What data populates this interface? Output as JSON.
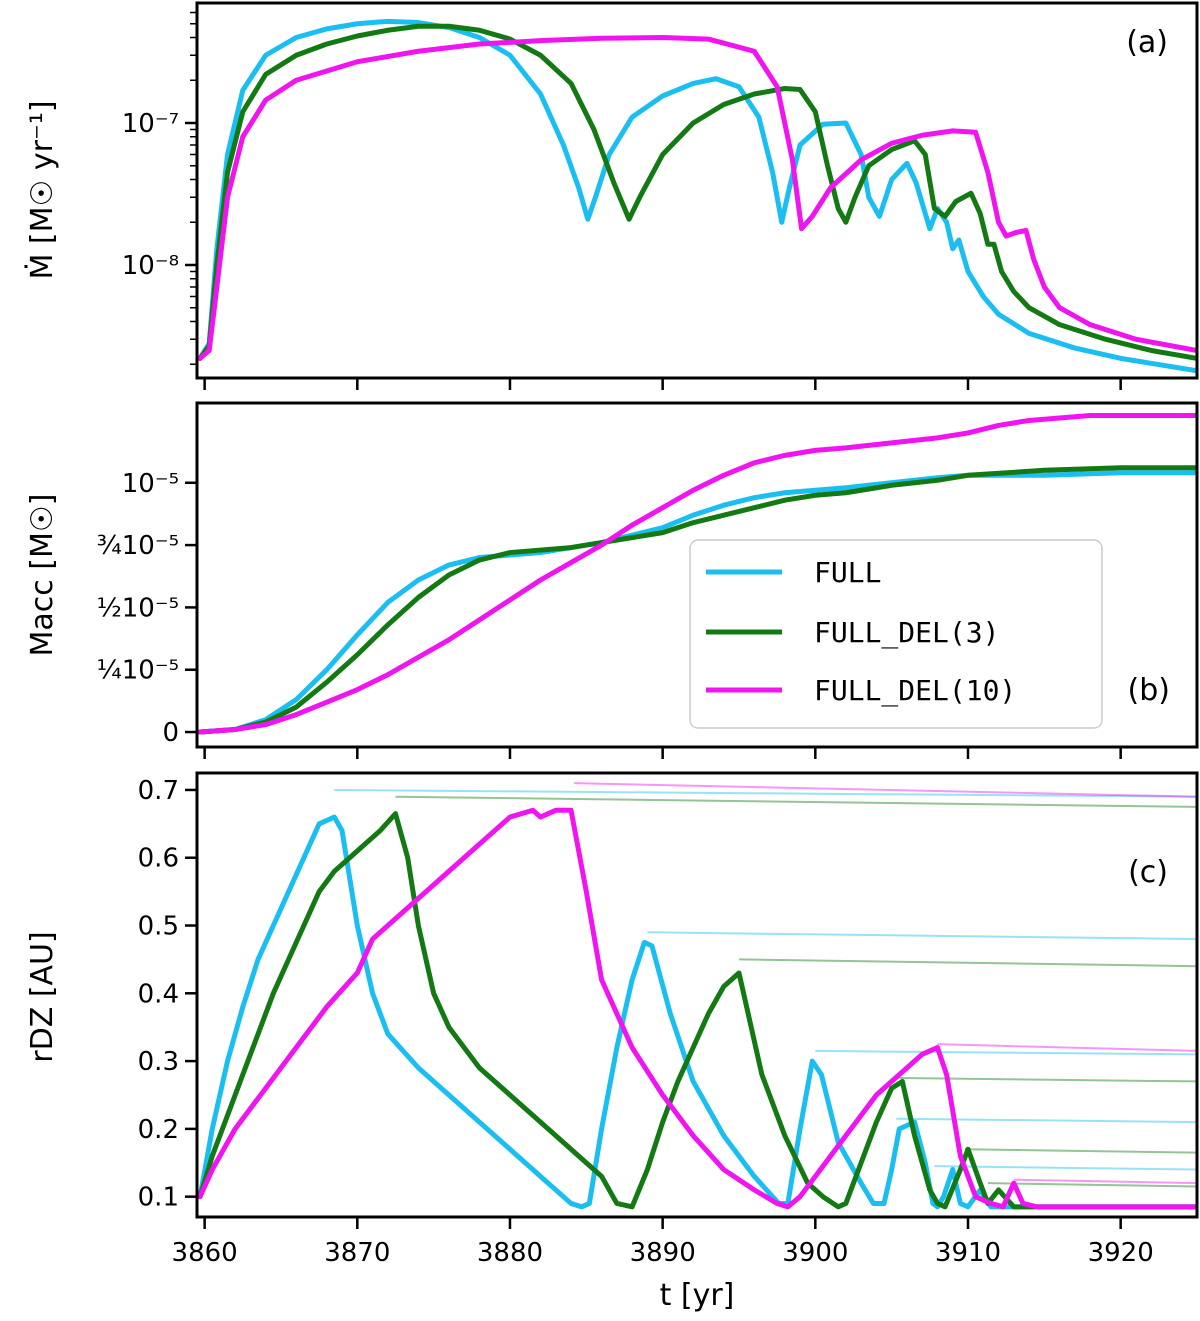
{
  "chart_data": [
    {
      "panel": "(a)",
      "type": "line",
      "yscale": "log",
      "ylabel": "Ṁ [M☉ yr⁻¹]",
      "xlim": [
        3859.5,
        3925
      ],
      "ylim": [
        1.6e-09,
        7e-07
      ],
      "yticks": [
        {
          "value": 1e-08,
          "label": "10⁻⁸"
        },
        {
          "value": 1e-07,
          "label": "10⁻⁷"
        }
      ],
      "series": [
        {
          "name": "FULL",
          "color": "#1ABEF0",
          "x": [
            3859.7,
            3860.3,
            3860.8,
            3861.5,
            3862.5,
            3864,
            3866,
            3868,
            3870,
            3872,
            3874,
            3876,
            3878,
            3880,
            3882,
            3883.5,
            3884.5,
            3885.1,
            3885.6,
            3886.5,
            3888,
            3890,
            3892,
            3893.5,
            3895,
            3896.3,
            3897.2,
            3897.8,
            3898.3,
            3899,
            3900.5,
            3902,
            3903,
            3903.5,
            3904.2,
            3905,
            3906,
            3906.6,
            3907.5,
            3908,
            3908.6,
            3909,
            3909.4,
            3910,
            3911,
            3912,
            3914,
            3917,
            3920,
            3925
          ],
          "y": [
            2.2e-09,
            2.8e-09,
            1.3e-08,
            6e-08,
            1.7e-07,
            3e-07,
            4e-07,
            4.6e-07,
            5e-07,
            5.2e-07,
            5.1e-07,
            4.7e-07,
            4e-07,
            3e-07,
            1.6e-07,
            7e-08,
            3.5e-08,
            2.1e-08,
            3e-08,
            6e-08,
            1.1e-07,
            1.55e-07,
            1.9e-07,
            2.05e-07,
            1.8e-07,
            1.1e-07,
            4.5e-08,
            2e-08,
            3.5e-08,
            7e-08,
            9.8e-08,
            1e-07,
            6e-08,
            3e-08,
            2.2e-08,
            4e-08,
            5.2e-08,
            3.8e-08,
            1.8e-08,
            2.5e-08,
            2e-08,
            1.3e-08,
            1.5e-08,
            9e-09,
            6e-09,
            4.5e-09,
            3.3e-09,
            2.6e-09,
            2.2e-09,
            1.8e-09
          ]
        },
        {
          "name": "FULL_DEL(3)",
          "color": "#137A13",
          "x": [
            3859.7,
            3860.3,
            3860.8,
            3861.5,
            3862.5,
            3864,
            3866,
            3868,
            3870,
            3872,
            3874,
            3876,
            3878,
            3880,
            3882,
            3884,
            3885.5,
            3886.8,
            3887.8,
            3888.5,
            3890,
            3892,
            3894,
            3896,
            3898,
            3899,
            3900,
            3900.8,
            3901.5,
            3902,
            3902.6,
            3903.5,
            3905,
            3906.5,
            3907.2,
            3907.8,
            3908.5,
            3909.2,
            3910.2,
            3910.8,
            3911.3,
            3911.7,
            3912.2,
            3913,
            3914,
            3916,
            3919,
            3922,
            3925
          ],
          "y": [
            2.2e-09,
            2.7e-09,
            1e-08,
            4.5e-08,
            1.2e-07,
            2.2e-07,
            3e-07,
            3.6e-07,
            4.1e-07,
            4.5e-07,
            4.8e-07,
            4.8e-07,
            4.5e-07,
            3.9e-07,
            3e-07,
            1.9e-07,
            9e-08,
            3.8e-08,
            2.1e-08,
            3e-08,
            6e-08,
            1e-07,
            1.35e-07,
            1.6e-07,
            1.75e-07,
            1.72e-07,
            1.2e-07,
            5e-08,
            2.5e-08,
            2e-08,
            3e-08,
            5e-08,
            6.5e-08,
            7.5e-08,
            6e-08,
            2.5e-08,
            2.2e-08,
            2.8e-08,
            3.2e-08,
            2.3e-08,
            1.4e-08,
            1.4e-08,
            9e-09,
            6.5e-09,
            5e-09,
            3.8e-09,
            3e-09,
            2.5e-09,
            2.2e-09
          ]
        },
        {
          "name": "FULL_DEL(10)",
          "color": "#F015F0",
          "x": [
            3859.7,
            3860.3,
            3860.8,
            3861.5,
            3862.5,
            3864,
            3866,
            3870,
            3874,
            3878,
            3882,
            3886,
            3890,
            3893,
            3896,
            3897.5,
            3898.5,
            3899.1,
            3899.8,
            3901,
            3903,
            3905,
            3907,
            3909,
            3910.5,
            3911.3,
            3912,
            3912.5,
            3913.2,
            3913.8,
            3914.3,
            3915,
            3916,
            3918,
            3921,
            3925
          ],
          "y": [
            2.2e-09,
            2.5e-09,
            7e-09,
            3e-08,
            8e-08,
            1.45e-07,
            2e-07,
            2.7e-07,
            3.2e-07,
            3.6e-07,
            3.8e-07,
            3.95e-07,
            4e-07,
            3.9e-07,
            3.2e-07,
            1.8e-07,
            5.5e-08,
            1.8e-08,
            2.2e-08,
            3.5e-08,
            5.5e-08,
            7.2e-08,
            8.2e-08,
            8.8e-08,
            8.6e-08,
            4.5e-08,
            2e-08,
            1.6e-08,
            1.7e-08,
            1.75e-08,
            1.1e-08,
            7e-09,
            5e-09,
            3.8e-09,
            3e-09,
            2.5e-09
          ]
        }
      ]
    },
    {
      "panel": "(b)",
      "type": "line",
      "ylabel": "Macc [M☉]",
      "xlim": [
        3859.5,
        3925
      ],
      "ylim": [
        -6e-07,
        1.32e-05
      ],
      "yticks": [
        {
          "value": 0,
          "label": "0"
        },
        {
          "value": 2.5e-06,
          "label": "¼10⁻⁵"
        },
        {
          "value": 5e-06,
          "label": "½10⁻⁵"
        },
        {
          "value": 7.5e-06,
          "label": "¾10⁻⁵"
        },
        {
          "value": 1e-05,
          "label": "10⁻⁵"
        }
      ],
      "series": [
        {
          "name": "FULL",
          "color": "#1ABEF0",
          "x": [
            3859.7,
            3862,
            3864,
            3866,
            3868,
            3870,
            3872,
            3874,
            3876,
            3878,
            3880,
            3882,
            3884,
            3886,
            3888,
            3890,
            3892,
            3894,
            3896,
            3898,
            3900,
            3902,
            3905,
            3908,
            3910,
            3915,
            3920,
            3925
          ],
          "y": [
            0,
            1e-07,
            5e-07,
            1.3e-06,
            2.5e-06,
            3.9e-06,
            5.2e-06,
            6.1e-06,
            6.7e-06,
            7e-06,
            7.1e-06,
            7.2e-06,
            7.4e-06,
            7.6e-06,
            7.9e-06,
            8.2e-06,
            8.7e-06,
            9.1e-06,
            9.4e-06,
            9.6e-06,
            9.7e-06,
            9.8e-06,
            1e-05,
            1.02e-05,
            1.03e-05,
            1.03e-05,
            1.04e-05,
            1.04e-05
          ]
        },
        {
          "name": "FULL_DEL(3)",
          "color": "#137A13",
          "x": [
            3859.7,
            3862,
            3864,
            3866,
            3868,
            3870,
            3872,
            3874,
            3876,
            3878,
            3880,
            3882,
            3884,
            3886,
            3888,
            3890,
            3892,
            3894,
            3896,
            3898,
            3900,
            3902,
            3905,
            3908,
            3910,
            3915,
            3920,
            3925
          ],
          "y": [
            0,
            1e-07,
            4e-07,
            1e-06,
            2e-06,
            3.1e-06,
            4.3e-06,
            5.4e-06,
            6.3e-06,
            6.9e-06,
            7.2e-06,
            7.3e-06,
            7.4e-06,
            7.6e-06,
            7.8e-06,
            8e-06,
            8.4e-06,
            8.7e-06,
            9e-06,
            9.3e-06,
            9.5e-06,
            9.6e-06,
            9.9e-06,
            1.01e-05,
            1.03e-05,
            1.05e-05,
            1.06e-05,
            1.06e-05
          ]
        },
        {
          "name": "FULL_DEL(10)",
          "color": "#F015F0",
          "x": [
            3859.7,
            3862,
            3864,
            3866,
            3868,
            3870,
            3872,
            3874,
            3876,
            3878,
            3880,
            3882,
            3884,
            3886,
            3888,
            3890,
            3892,
            3894,
            3896,
            3898,
            3900,
            3902,
            3905,
            3908,
            3910,
            3912,
            3914,
            3916,
            3918,
            3920,
            3925
          ],
          "y": [
            0,
            1e-07,
            3e-07,
            7e-07,
            1.2e-06,
            1.7e-06,
            2.3e-06,
            3e-06,
            3.7e-06,
            4.5e-06,
            5.3e-06,
            6.1e-06,
            6.8e-06,
            7.5e-06,
            8.3e-06,
            9e-06,
            9.7e-06,
            1.03e-05,
            1.08e-05,
            1.11e-05,
            1.13e-05,
            1.14e-05,
            1.16e-05,
            1.18e-05,
            1.2e-05,
            1.23e-05,
            1.25e-05,
            1.26e-05,
            1.27e-05,
            1.27e-05,
            1.27e-05
          ]
        }
      ],
      "legend": {
        "location": "lower-right",
        "entries": [
          "FULL",
          "FULL_DEL(3)",
          "FULL_DEL(10)"
        ]
      }
    },
    {
      "panel": "(c)",
      "type": "line",
      "ylabel": "rDZ [AU]",
      "xlabel": "t [yr]",
      "xlim": [
        3859.5,
        3925
      ],
      "ylim": [
        0.07,
        0.725
      ],
      "xticks": [
        3860,
        3870,
        3880,
        3890,
        3900,
        3910,
        3920
      ],
      "yticks": [
        0.1,
        0.2,
        0.3,
        0.4,
        0.5,
        0.6,
        0.7
      ],
      "series": [
        {
          "name": "FULL",
          "color": "#1ABEF0",
          "x": [
            3859.7,
            3860.5,
            3861.5,
            3862.5,
            3863.5,
            3864.5,
            3865.5,
            3866.5,
            3867.5,
            3868.5,
            3869,
            3870,
            3871,
            3872,
            3874,
            3876,
            3878,
            3880,
            3882,
            3884,
            3884.7,
            3885.2,
            3886,
            3887,
            3888,
            3888.8,
            3889.3,
            3890.5,
            3892,
            3894,
            3896,
            3897.6,
            3898.2,
            3899,
            3899.8,
            3900.4,
            3901.5,
            3903,
            3903.8,
            3904.5,
            3905,
            3905.5,
            3906.5,
            3907.2,
            3907.7,
            3908,
            3908.4,
            3909,
            3909.5,
            3910,
            3910.8,
            3911.5,
            3925
          ],
          "y": [
            0.1,
            0.2,
            0.3,
            0.38,
            0.45,
            0.5,
            0.55,
            0.6,
            0.65,
            0.66,
            0.64,
            0.5,
            0.4,
            0.34,
            0.29,
            0.25,
            0.21,
            0.17,
            0.13,
            0.09,
            0.085,
            0.09,
            0.2,
            0.32,
            0.42,
            0.475,
            0.47,
            0.37,
            0.27,
            0.19,
            0.13,
            0.09,
            0.09,
            0.2,
            0.3,
            0.28,
            0.18,
            0.12,
            0.09,
            0.09,
            0.14,
            0.2,
            0.21,
            0.15,
            0.09,
            0.085,
            0.1,
            0.14,
            0.09,
            0.085,
            0.11,
            0.085,
            0.085
          ]
        },
        {
          "name": "FULL_DEL(3)",
          "color": "#137A13",
          "x": [
            3859.7,
            3860.5,
            3861.5,
            3862.5,
            3863.5,
            3864.5,
            3865.5,
            3866.5,
            3867.5,
            3868.5,
            3869.5,
            3870.5,
            3871.5,
            3872.5,
            3873.3,
            3874,
            3875,
            3876,
            3878,
            3880,
            3882,
            3884,
            3886,
            3887,
            3888,
            3889,
            3890,
            3891,
            3892,
            3893,
            3894,
            3895,
            3895.5,
            3896.5,
            3898,
            3899.5,
            3900.5,
            3901.5,
            3902,
            3903,
            3904,
            3905,
            3905.7,
            3906.5,
            3907.5,
            3908,
            3908.5,
            3909.5,
            3910,
            3910.8,
            3911.3,
            3912,
            3913,
            3925
          ],
          "y": [
            0.1,
            0.16,
            0.22,
            0.28,
            0.34,
            0.4,
            0.45,
            0.5,
            0.55,
            0.58,
            0.6,
            0.62,
            0.64,
            0.665,
            0.6,
            0.5,
            0.4,
            0.35,
            0.29,
            0.25,
            0.21,
            0.17,
            0.13,
            0.09,
            0.085,
            0.14,
            0.21,
            0.27,
            0.32,
            0.37,
            0.41,
            0.43,
            0.38,
            0.28,
            0.19,
            0.12,
            0.1,
            0.085,
            0.09,
            0.15,
            0.21,
            0.26,
            0.27,
            0.19,
            0.11,
            0.09,
            0.085,
            0.14,
            0.17,
            0.12,
            0.09,
            0.11,
            0.085,
            0.085
          ]
        },
        {
          "name": "FULL_DEL(10)",
          "color": "#F015F0",
          "x": [
            3859.7,
            3860.5,
            3862,
            3864,
            3866,
            3868,
            3870,
            3871,
            3872,
            3874,
            3876,
            3878,
            3880,
            3881.5,
            3882,
            3883,
            3884,
            3885,
            3886,
            3888,
            3890,
            3892,
            3894,
            3896,
            3897.5,
            3898.2,
            3899,
            3900,
            3901,
            3902,
            3903,
            3904,
            3905,
            3906,
            3907,
            3908,
            3908.6,
            3909.5,
            3910.5,
            3911.5,
            3912.3,
            3913,
            3913.6,
            3914.5,
            3925
          ],
          "y": [
            0.1,
            0.14,
            0.2,
            0.26,
            0.32,
            0.38,
            0.43,
            0.48,
            0.5,
            0.54,
            0.58,
            0.62,
            0.66,
            0.67,
            0.66,
            0.67,
            0.67,
            0.55,
            0.42,
            0.32,
            0.25,
            0.19,
            0.14,
            0.11,
            0.09,
            0.085,
            0.1,
            0.13,
            0.16,
            0.19,
            0.22,
            0.25,
            0.27,
            0.29,
            0.31,
            0.32,
            0.28,
            0.16,
            0.1,
            0.09,
            0.085,
            0.12,
            0.09,
            0.085,
            0.085
          ]
        }
      ],
      "plateau_traces": [
        {
          "series": "FULL",
          "color": "#1ABEF0",
          "y_start": [
            0.7,
            0.49,
            0.315,
            0.215,
            0.145
          ],
          "y_end": [
            0.69,
            0.48,
            0.31,
            0.21,
            0.14
          ]
        },
        {
          "series": "FULL_DEL(3)",
          "color": "#137A13",
          "y_start": [
            0.69,
            0.45,
            0.275,
            0.17,
            0.12
          ],
          "y_end": [
            0.675,
            0.44,
            0.27,
            0.165,
            0.115
          ]
        },
        {
          "series": "FULL_DEL(10)",
          "color": "#F015F0",
          "y_start": [
            0.71,
            0.325,
            0.125
          ],
          "y_end": [
            0.69,
            0.315,
            0.12
          ]
        }
      ]
    }
  ]
}
